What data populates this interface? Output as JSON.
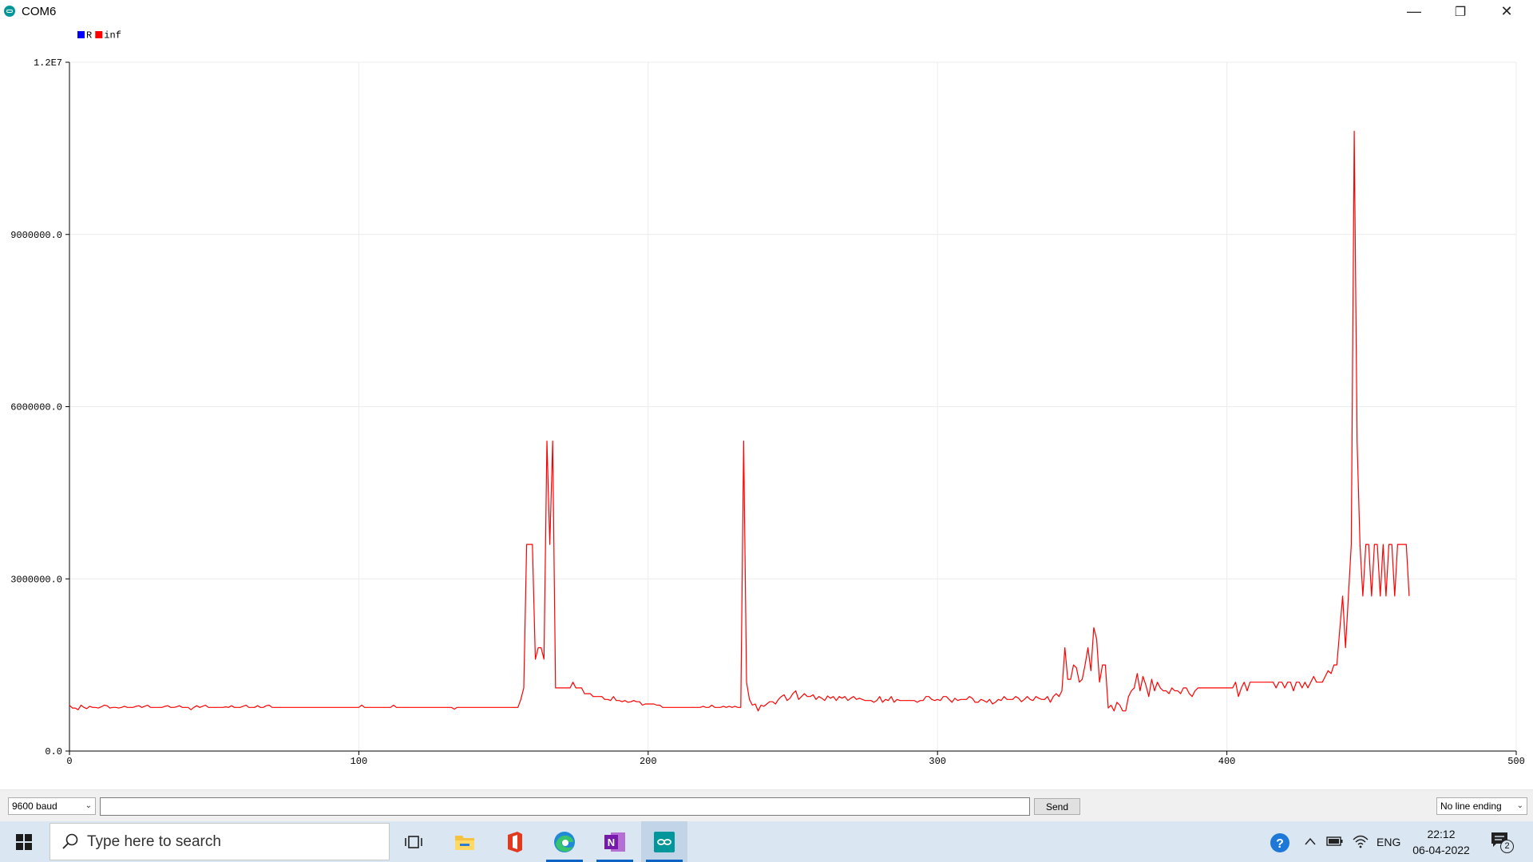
{
  "window": {
    "title": "COM6",
    "minimize_glyph": "—",
    "maximize_glyph": "❐",
    "close_glyph": "✕"
  },
  "legend": [
    {
      "name": "R",
      "color": "#0000ff"
    },
    {
      "name": "inf",
      "color": "#ff0000"
    }
  ],
  "chart_data": {
    "type": "line",
    "xlim": [
      0,
      500
    ],
    "ylim": [
      0,
      12000000
    ],
    "x_ticks": [
      0,
      100,
      200,
      300,
      400,
      500
    ],
    "x_tick_labels": [
      "0",
      "100",
      "200",
      "300",
      "400",
      "500"
    ],
    "y_ticks": [
      0,
      3000000,
      6000000,
      9000000,
      12000000
    ],
    "y_tick_labels": [
      "0.0",
      "3000000.0",
      "6000000.0",
      "9000000.0",
      "1.2E7"
    ],
    "grid": true,
    "series": [
      {
        "name": "inf",
        "color": "#ff0000",
        "x_start": 0,
        "x_step": 1,
        "values": [
          800000,
          750000,
          750000,
          720000,
          800000,
          760000,
          740000,
          780000,
          760000,
          760000,
          750000,
          770000,
          800000,
          790000,
          750000,
          760000,
          760000,
          750000,
          760000,
          780000,
          760000,
          760000,
          760000,
          780000,
          790000,
          760000,
          780000,
          800000,
          760000,
          760000,
          760000,
          760000,
          760000,
          780000,
          790000,
          760000,
          760000,
          770000,
          790000,
          760000,
          760000,
          760000,
          720000,
          760000,
          790000,
          760000,
          780000,
          800000,
          760000,
          760000,
          760000,
          760000,
          760000,
          760000,
          770000,
          760000,
          790000,
          760000,
          760000,
          760000,
          780000,
          800000,
          760000,
          760000,
          760000,
          790000,
          760000,
          760000,
          790000,
          800000,
          760000,
          760000,
          760000,
          760000,
          760000,
          760000,
          760000,
          760000,
          760000,
          760000,
          760000,
          760000,
          760000,
          760000,
          760000,
          760000,
          760000,
          760000,
          760000,
          760000,
          760000,
          760000,
          760000,
          760000,
          760000,
          760000,
          760000,
          760000,
          760000,
          760000,
          760000,
          800000,
          760000,
          760000,
          760000,
          760000,
          760000,
          760000,
          760000,
          760000,
          760000,
          760000,
          800000,
          760000,
          760000,
          760000,
          760000,
          760000,
          760000,
          760000,
          760000,
          760000,
          760000,
          760000,
          760000,
          760000,
          760000,
          760000,
          760000,
          760000,
          760000,
          760000,
          760000,
          730000,
          760000,
          760000,
          760000,
          760000,
          760000,
          760000,
          760000,
          760000,
          760000,
          760000,
          760000,
          760000,
          760000,
          760000,
          760000,
          760000,
          760000,
          760000,
          760000,
          760000,
          760000,
          760000,
          900000,
          1100000,
          3600000,
          3600000,
          3600000,
          1600000,
          1800000,
          1800000,
          1600000,
          5400000,
          3600000,
          5400000,
          1100000,
          1100000,
          1100000,
          1100000,
          1100000,
          1100000,
          1200000,
          1100000,
          1100000,
          1100000,
          1000000,
          1000000,
          1000000,
          950000,
          950000,
          950000,
          950000,
          900000,
          900000,
          880000,
          950000,
          880000,
          880000,
          860000,
          880000,
          850000,
          860000,
          880000,
          860000,
          860000,
          800000,
          820000,
          820000,
          820000,
          820000,
          800000,
          800000,
          760000,
          760000,
          760000,
          760000,
          760000,
          760000,
          760000,
          760000,
          760000,
          760000,
          760000,
          760000,
          760000,
          760000,
          780000,
          760000,
          760000,
          800000,
          760000,
          760000,
          760000,
          780000,
          760000,
          780000,
          760000,
          780000,
          760000,
          760000,
          5400000,
          1200000,
          900000,
          800000,
          820000,
          700000,
          800000,
          780000,
          820000,
          860000,
          860000,
          820000,
          900000,
          950000,
          980000,
          880000,
          920000,
          1000000,
          1050000,
          900000,
          950000,
          1000000,
          950000,
          950000,
          980000,
          900000,
          950000,
          920000,
          880000,
          960000,
          920000,
          950000,
          880000,
          950000,
          920000,
          950000,
          880000,
          920000,
          950000,
          900000,
          920000,
          900000,
          880000,
          880000,
          880000,
          850000,
          880000,
          950000,
          850000,
          900000,
          880000,
          950000,
          850000,
          900000,
          880000,
          880000,
          880000,
          880000,
          880000,
          880000,
          850000,
          880000,
          880000,
          950000,
          950000,
          900000,
          880000,
          900000,
          880000,
          950000,
          950000,
          900000,
          850000,
          920000,
          880000,
          900000,
          900000,
          900000,
          950000,
          920000,
          850000,
          850000,
          900000,
          880000,
          850000,
          900000,
          820000,
          850000,
          900000,
          880000,
          950000,
          900000,
          900000,
          900000,
          950000,
          920000,
          860000,
          900000,
          950000,
          900000,
          880000,
          950000,
          920000,
          900000,
          900000,
          950000,
          850000,
          950000,
          1000000,
          950000,
          1050000,
          1800000,
          1250000,
          1250000,
          1500000,
          1450000,
          1200000,
          1250000,
          1500000,
          1800000,
          1400000,
          2150000,
          1950000,
          1200000,
          1500000,
          1500000,
          750000,
          800000,
          700000,
          850000,
          800000,
          700000,
          700000,
          950000,
          1050000,
          1100000,
          1350000,
          1050000,
          1300000,
          1150000,
          950000,
          1250000,
          1050000,
          1200000,
          1100000,
          1050000,
          1050000,
          1000000,
          1100000,
          1050000,
          1050000,
          1000000,
          1100000,
          1100000,
          1000000,
          950000,
          1050000,
          1100000,
          1100000,
          1100000,
          1100000,
          1100000,
          1100000,
          1100000,
          1100000,
          1100000,
          1100000,
          1100000,
          1100000,
          1100000,
          1200000,
          950000,
          1100000,
          1200000,
          1050000,
          1200000,
          1200000,
          1200000,
          1200000,
          1200000,
          1200000,
          1200000,
          1200000,
          1200000,
          1100000,
          1200000,
          1200000,
          1100000,
          1200000,
          1200000,
          1050000,
          1200000,
          1200000,
          1100000,
          1200000,
          1100000,
          1200000,
          1300000,
          1200000,
          1200000,
          1200000,
          1300000,
          1400000,
          1350000,
          1500000,
          1500000,
          2100000,
          2700000,
          1800000,
          2700000,
          3600000,
          10800000,
          5400000,
          3600000,
          2700000,
          3600000,
          3600000,
          2700000,
          3600000,
          3600000,
          2700000,
          3600000,
          2700000,
          3600000,
          3600000,
          2700000,
          3600000,
          3600000,
          3600000,
          3600000,
          2700000
        ]
      }
    ]
  },
  "controls": {
    "baud": "9600 baud",
    "input_value": "",
    "send_label": "Send",
    "line_ending": "No line ending"
  },
  "taskbar": {
    "search_placeholder": "Type here to search",
    "language": "ENG",
    "time": "22:12",
    "date": "06-04-2022",
    "notification_count": "2"
  }
}
